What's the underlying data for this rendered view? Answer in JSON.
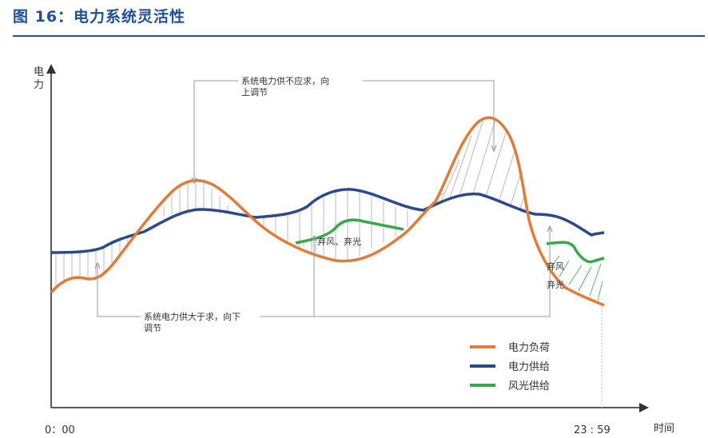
{
  "figure": {
    "title": "图 16：电力系统灵活性"
  },
  "axes": {
    "y_label": "电力",
    "x_label": "时间",
    "x_start": "0：00",
    "x_end": "23 : 59"
  },
  "annotations": {
    "supply_short": "系统电力供不应求，向上调节",
    "supply_excess": "系统电力供大于求，向下调节",
    "curtail_1": "弃风、弃光",
    "curtail_2a": "弃风",
    "curtail_2b": "弃光"
  },
  "legend": [
    {
      "label": "电力负荷",
      "color": "#e07b39"
    },
    {
      "label": "电力供给",
      "color": "#2a4a8c"
    },
    {
      "label": "风光供给",
      "color": "#3aa84a"
    }
  ]
}
